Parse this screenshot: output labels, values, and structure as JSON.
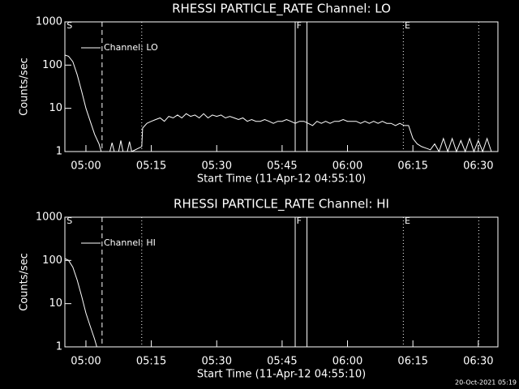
{
  "chart_data": [
    {
      "type": "line",
      "title": "RHESSI PARTICLE_RATE Channel: LO",
      "xlabel": "Start Time (11-Apr-12 04:55:10)",
      "ylabel": "Counts/sec",
      "log_y": true,
      "color": "#ffffff",
      "legend": "upper-left",
      "xlim": [
        295.17,
        394.5
      ],
      "xticks": [
        {
          "value": 300,
          "label": "05:00"
        },
        {
          "value": 315,
          "label": "05:15"
        },
        {
          "value": 330,
          "label": "05:30"
        },
        {
          "value": 345,
          "label": "05:45"
        },
        {
          "value": 360,
          "label": "06:00"
        },
        {
          "value": 375,
          "label": "06:15"
        },
        {
          "value": 390,
          "label": "06:30"
        }
      ],
      "ylim": [
        1,
        1000
      ],
      "yticks": [
        1,
        10,
        100,
        1000
      ],
      "vlines": [
        {
          "x": 303.7,
          "style": "dashed"
        },
        {
          "x": 312.8,
          "style": "dotted"
        },
        {
          "x": 348.0,
          "style": "solid"
        },
        {
          "x": 350.7,
          "style": "solid"
        },
        {
          "x": 372.8,
          "style": "dotted"
        },
        {
          "x": 390.1,
          "style": "dotted"
        }
      ],
      "markers": [
        {
          "label": "S",
          "x": 295.6
        },
        {
          "label": "F",
          "x": 348.3
        },
        {
          "label": "E",
          "x": 373.1
        }
      ],
      "series": [
        {
          "name": "Channel: LO",
          "x": [
            295.2,
            296,
            297,
            298,
            299,
            300,
            301,
            302,
            303,
            303.5,
            305.5,
            306,
            306.5,
            307.5,
            308,
            308.5,
            309.5,
            310,
            310.5,
            312.8,
            313,
            314,
            315,
            316,
            317,
            318,
            319,
            320,
            321,
            322,
            323,
            324,
            325,
            326,
            327,
            328,
            329,
            330,
            331,
            332,
            333,
            334,
            335,
            336,
            337,
            338,
            339,
            340,
            341,
            342,
            343,
            344,
            345,
            346,
            347,
            348,
            349,
            350,
            351,
            352,
            353,
            354,
            355,
            356,
            357,
            358,
            359,
            360,
            361,
            362,
            363,
            364,
            365,
            366,
            367,
            368,
            369,
            370,
            371,
            372,
            373,
            374,
            375,
            376,
            377,
            378,
            379,
            380,
            381,
            382,
            383,
            384,
            385,
            386,
            387,
            388,
            389,
            390,
            391,
            392,
            393
          ],
          "values": [
            170,
            160,
            120,
            60,
            25,
            10,
            5,
            2.5,
            1.5,
            1,
            1,
            1.6,
            1,
            1,
            1.8,
            1,
            1,
            1.7,
            1,
            1.3,
            3.5,
            4.5,
            5,
            5.5,
            6,
            5,
            6.5,
            6,
            7,
            6,
            7.5,
            6.5,
            7,
            6,
            7.5,
            6,
            7,
            6.5,
            7,
            6,
            6.5,
            6,
            5.5,
            6,
            5,
            5.5,
            5,
            5,
            5.5,
            5,
            4.5,
            5,
            5,
            5.5,
            5,
            4.5,
            5,
            5,
            4.5,
            4,
            5,
            4.5,
            5,
            4.5,
            5,
            5,
            5.5,
            5,
            5,
            5,
            4.5,
            5,
            4.5,
            5,
            4.5,
            5,
            4.5,
            4.5,
            4,
            4.5,
            4,
            4,
            2,
            1.5,
            1.3,
            1.2,
            1.1,
            1.5,
            1,
            2,
            1,
            2,
            1,
            1.8,
            1,
            2,
            1,
            1.8,
            1,
            2,
            1
          ]
        }
      ]
    },
    {
      "type": "line",
      "title": "RHESSI PARTICLE_RATE Channel: HI",
      "xlabel": "Start Time (11-Apr-12 04:55:10)",
      "ylabel": "Counts/sec",
      "log_y": true,
      "color": "#ffffff",
      "legend": "upper-left",
      "xlim": [
        295.17,
        394.5
      ],
      "xticks": [
        {
          "value": 300,
          "label": "05:00"
        },
        {
          "value": 315,
          "label": "05:15"
        },
        {
          "value": 330,
          "label": "05:30"
        },
        {
          "value": 345,
          "label": "05:45"
        },
        {
          "value": 360,
          "label": "06:00"
        },
        {
          "value": 375,
          "label": "06:15"
        },
        {
          "value": 390,
          "label": "06:30"
        }
      ],
      "ylim": [
        1,
        1000
      ],
      "yticks": [
        1,
        10,
        100,
        1000
      ],
      "vlines": [
        {
          "x": 303.7,
          "style": "dashed"
        },
        {
          "x": 312.8,
          "style": "dotted"
        },
        {
          "x": 348.0,
          "style": "solid"
        },
        {
          "x": 350.7,
          "style": "solid"
        },
        {
          "x": 372.8,
          "style": "dotted"
        },
        {
          "x": 390.1,
          "style": "dotted"
        }
      ],
      "markers": [
        {
          "label": "S",
          "x": 295.6
        },
        {
          "label": "F",
          "x": 348.3
        },
        {
          "label": "E",
          "x": 373.1
        }
      ],
      "series": [
        {
          "name": "Channel: HI",
          "x": [
            295.2,
            296,
            297,
            298,
            299,
            300,
            301,
            302,
            302.5
          ],
          "values": [
            110,
            100,
            70,
            35,
            15,
            6,
            3,
            1.5,
            1
          ]
        }
      ]
    }
  ],
  "footer": "20-Oct-2021 05:19"
}
